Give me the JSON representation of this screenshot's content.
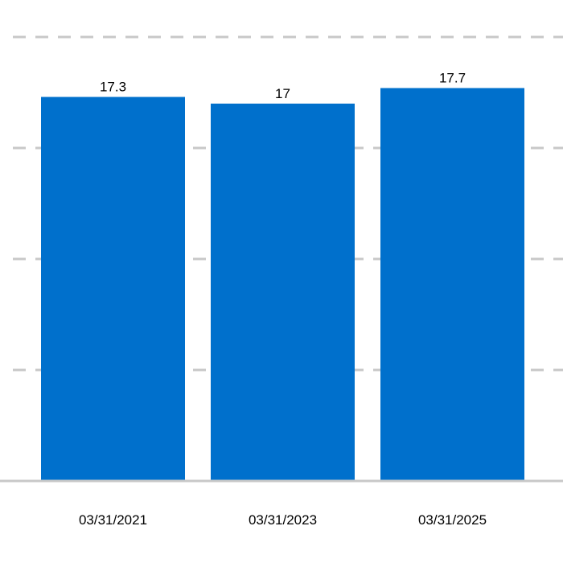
{
  "chart_data": {
    "type": "bar",
    "title": "",
    "xlabel": "",
    "ylabel": "",
    "categories": [
      "03/31/2021",
      "03/31/2023",
      "03/31/2025"
    ],
    "values": [
      17.3,
      17,
      17.7
    ],
    "data_labels": [
      "17.3",
      "17",
      "17.7"
    ],
    "ylim": [
      0,
      20
    ],
    "grid": true,
    "grid_style": "dashed",
    "legend": "none",
    "colors": {
      "bar": "#0070CC",
      "grid": "#C8C8C8",
      "axis": "#C8C8C8",
      "text": "#000000"
    }
  }
}
